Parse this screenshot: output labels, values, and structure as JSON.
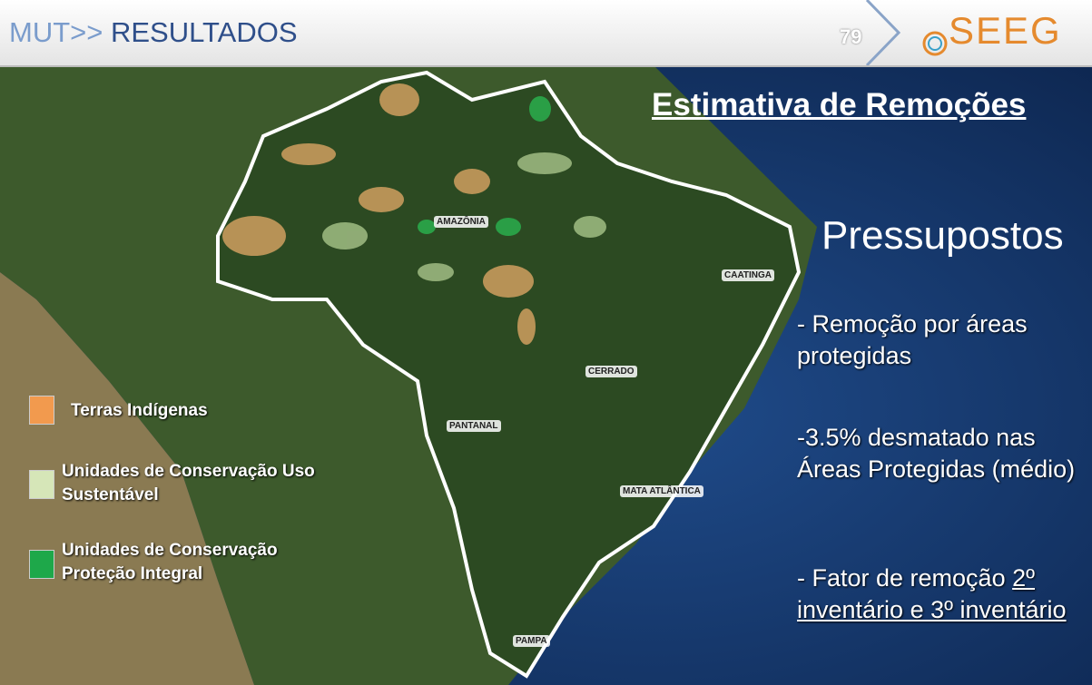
{
  "header": {
    "section_prefix": "MUT>> ",
    "section_title": "RESULTADOS",
    "page_number": "79",
    "logo": "SEEG"
  },
  "slide": {
    "title": "Estimativa de Remoções",
    "subtitle": "Pressupostos",
    "points": [
      {
        "text": "- Remoção por áreas protegidas"
      },
      {
        "text": "-3.5% desmatado nas Áreas Protegidas (médio)"
      },
      {
        "text": "- Fator de remoção ",
        "underlined": "2º inventário e 3º inventário"
      }
    ]
  },
  "legend": [
    "Terras Indígenas",
    "Unidades de Conservação Uso Sustentável",
    "Unidades de Conservação Proteção Integral"
  ],
  "map_labels": [
    "AMAZÔNIA",
    "CAATINGA",
    "CERRADO",
    "PANTANAL",
    "MATA ATLÂNTICA",
    "PAMPA"
  ]
}
